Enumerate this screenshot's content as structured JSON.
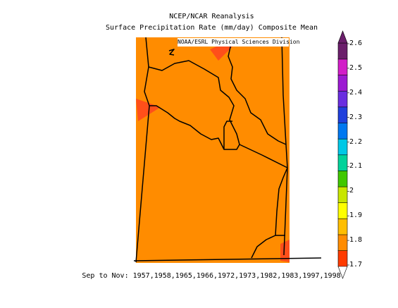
{
  "title_line1": "NCEP/NCAR Reanalysis",
  "title_line2": "Surface Precipitation Rate (mm/day) Composite Mean",
  "credit": "NOAA/ESRL Physical Sciences Division",
  "footer": "Sep to Nov: 1957,1958,1965,1966,1972,1973,1982,1983,1997,1998",
  "map": {
    "field_color": "#ff8c00",
    "highlight_color": "#ff4f1a",
    "dominant_value_range": [
      1.7,
      1.8
    ],
    "highlight_value_range": [
      1.6,
      1.7
    ]
  },
  "colorbar": {
    "labels": [
      "1.7",
      "1.8",
      "1.9",
      "2",
      "2.1",
      "2.2",
      "2.3",
      "2.4",
      "2.5",
      "2.6"
    ],
    "colors": [
      "#ff3b00",
      "#ff8c00",
      "#ffbe00",
      "#ffff00",
      "#c8e600",
      "#40c800",
      "#00d29a",
      "#00c8e6",
      "#0078f0",
      "#2040dc",
      "#6a2ee0",
      "#9c1ad2",
      "#d21ec8",
      "#6b1f6b"
    ]
  }
}
